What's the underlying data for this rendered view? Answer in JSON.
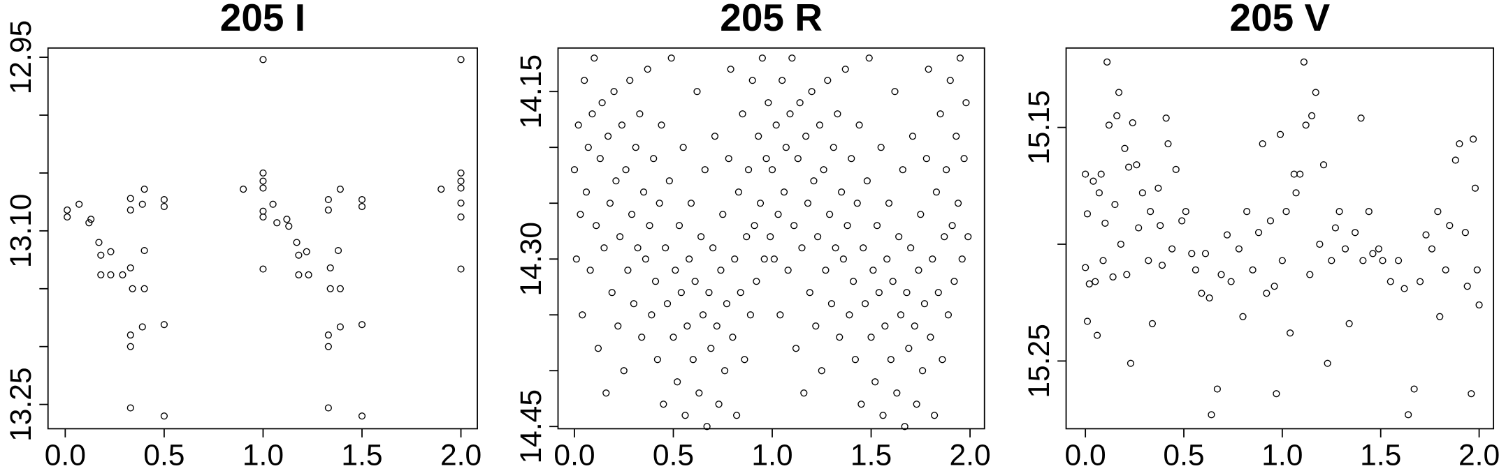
{
  "chart_data": [
    {
      "type": "scatter",
      "title": "205 I",
      "x": [
        0.01,
        0.01,
        0.07,
        0.13,
        0.12,
        0.17,
        0.18,
        0.23,
        0.18,
        0.23,
        0.29,
        0.33,
        0.33,
        0.33,
        0.34,
        0.33,
        0.33,
        0.33,
        0.39,
        0.4,
        0.4,
        0.39,
        0.4,
        0.5,
        0.5,
        0.5,
        0.5,
        0.9,
        1.0,
        1.0,
        1.0,
        1.0,
        1.0,
        1.0,
        1.0,
        1.05,
        1.07,
        1.12,
        1.13,
        1.17,
        1.18,
        1.22,
        1.18,
        1.23,
        1.33,
        1.33,
        1.34,
        1.34,
        1.33,
        1.33,
        1.33,
        1.39,
        1.39,
        1.39,
        1.38,
        1.5,
        1.5,
        1.5,
        1.5,
        1.9,
        2.0,
        2.0,
        2.0,
        2.0,
        2.0,
        2.0,
        2.0
      ],
      "y": [
        13.082,
        13.088,
        13.077,
        13.09,
        13.093,
        13.11,
        13.121,
        13.118,
        13.138,
        13.138,
        13.138,
        13.082,
        13.072,
        13.132,
        13.15,
        13.19,
        13.2,
        13.253,
        13.077,
        13.064,
        13.15,
        13.183,
        13.117,
        13.073,
        13.079,
        13.181,
        13.26,
        13.064,
        12.952,
        13.05,
        13.057,
        13.063,
        13.083,
        13.088,
        13.133,
        13.077,
        13.093,
        13.09,
        13.096,
        13.11,
        13.121,
        13.118,
        13.138,
        13.138,
        13.073,
        13.082,
        13.132,
        13.15,
        13.19,
        13.2,
        13.253,
        13.064,
        13.15,
        13.183,
        13.117,
        13.073,
        13.079,
        13.181,
        13.26,
        13.064,
        12.952,
        13.05,
        13.057,
        13.063,
        13.076,
        13.088,
        13.133
      ],
      "xlim": [
        -0.087,
        2.083
      ],
      "ylim": [
        13.271,
        12.942
      ],
      "xticks": [
        {
          "value": 0,
          "label": "0.0"
        },
        0.5,
        {
          "value": 1,
          "label": "1.0"
        },
        1.5,
        {
          "value": 2,
          "label": "2.0"
        }
      ],
      "yticks": [
        12.95,
        {
          "value": 13.1,
          "label": "13.10"
        },
        13.25
      ],
      "yminorticks": [
        13.0,
        13.05,
        13.15,
        13.2
      ],
      "color": "#000000"
    },
    {
      "type": "scatter",
      "title": "205 R",
      "x": [
        0.0,
        0.01,
        0.02,
        0.03,
        0.04,
        0.05,
        0.06,
        0.07,
        0.08,
        0.09,
        0.1,
        0.11,
        0.12,
        0.13,
        0.14,
        0.15,
        0.16,
        0.17,
        0.18,
        0.19,
        0.2,
        0.21,
        0.22,
        0.23,
        0.24,
        0.25,
        0.26,
        0.27,
        0.28,
        0.29,
        0.3,
        0.31,
        0.32,
        0.33,
        0.34,
        0.35,
        0.36,
        0.37,
        0.38,
        0.39,
        0.4,
        0.41,
        0.42,
        0.43,
        0.44,
        0.45,
        0.46,
        0.47,
        0.48,
        0.49,
        0.5,
        0.51,
        0.52,
        0.53,
        0.54,
        0.55,
        0.56,
        0.57,
        0.58,
        0.59,
        0.6,
        0.61,
        0.62,
        0.63,
        0.64,
        0.65,
        0.66,
        0.67,
        0.68,
        0.69,
        0.7,
        0.71,
        0.72,
        0.73,
        0.74,
        0.75,
        0.76,
        0.77,
        0.78,
        0.79,
        0.8,
        0.81,
        0.82,
        0.83,
        0.84,
        0.85,
        0.86,
        0.87,
        0.88,
        0.89,
        0.9,
        0.91,
        0.92,
        0.93,
        0.94,
        0.95,
        0.96,
        0.97,
        0.98,
        0.99,
        1.0,
        1.01,
        1.02,
        1.03,
        1.04,
        1.05,
        1.06,
        1.07,
        1.08,
        1.09,
        1.1,
        1.11,
        1.12,
        1.13,
        1.14,
        1.15,
        1.16,
        1.17,
        1.18,
        1.19,
        1.2,
        1.21,
        1.22,
        1.23,
        1.24,
        1.25,
        1.26,
        1.27,
        1.28,
        1.29,
        1.3,
        1.31,
        1.32,
        1.33,
        1.34,
        1.35,
        1.36,
        1.37,
        1.38,
        1.39,
        1.4,
        1.41,
        1.42,
        1.43,
        1.44,
        1.45,
        1.46,
        1.47,
        1.48,
        1.49,
        1.5,
        1.51,
        1.52,
        1.53,
        1.54,
        1.55,
        1.56,
        1.57,
        1.58,
        1.59,
        1.6,
        1.61,
        1.62,
        1.63,
        1.64,
        1.65,
        1.66,
        1.67,
        1.68,
        1.69,
        1.7,
        1.71,
        1.72,
        1.73,
        1.74,
        1.75,
        1.76,
        1.77,
        1.78,
        1.79,
        1.8,
        1.81,
        1.82,
        1.83,
        1.84,
        1.85,
        1.86,
        1.87,
        1.88,
        1.89,
        1.9,
        1.91,
        1.92,
        1.93,
        1.94,
        1.95,
        1.96,
        1.97,
        1.98,
        1.99
      ],
      "y": [
        14.22,
        14.3,
        14.18,
        14.26,
        14.35,
        14.14,
        14.24,
        14.2,
        14.31,
        14.17,
        14.12,
        14.27,
        14.38,
        14.21,
        14.16,
        14.29,
        14.42,
        14.19,
        14.25,
        14.33,
        14.15,
        14.23,
        14.36,
        14.28,
        14.18,
        14.4,
        14.22,
        14.31,
        14.14,
        14.26,
        14.34,
        14.2,
        14.29,
        14.17,
        14.37,
        14.24,
        14.3,
        14.13,
        14.27,
        14.35,
        14.21,
        14.32,
        14.39,
        14.25,
        14.18,
        14.43,
        14.29,
        14.34,
        14.23,
        14.12,
        14.37,
        14.31,
        14.41,
        14.27,
        14.33,
        14.2,
        14.44,
        14.36,
        14.3,
        14.25,
        14.39,
        14.32,
        14.15,
        14.42,
        14.28,
        14.35,
        14.22,
        14.45,
        14.33,
        14.38,
        14.29,
        14.19,
        14.36,
        14.43,
        14.31,
        14.26,
        14.4,
        14.34,
        14.21,
        14.13,
        14.37,
        14.3,
        14.44,
        14.24,
        14.33,
        14.17,
        14.39,
        14.28,
        14.22,
        14.35,
        14.14,
        14.27,
        14.32,
        14.19,
        14.25,
        14.12,
        14.3,
        14.21,
        14.16,
        14.28,
        14.22,
        14.3,
        14.18,
        14.26,
        14.35,
        14.14,
        14.24,
        14.2,
        14.31,
        14.17,
        14.12,
        14.27,
        14.38,
        14.21,
        14.16,
        14.29,
        14.42,
        14.19,
        14.25,
        14.33,
        14.15,
        14.23,
        14.36,
        14.28,
        14.18,
        14.4,
        14.22,
        14.31,
        14.14,
        14.26,
        14.34,
        14.2,
        14.29,
        14.17,
        14.37,
        14.24,
        14.3,
        14.13,
        14.27,
        14.35,
        14.21,
        14.32,
        14.39,
        14.25,
        14.18,
        14.43,
        14.29,
        14.34,
        14.23,
        14.12,
        14.37,
        14.31,
        14.41,
        14.27,
        14.33,
        14.2,
        14.44,
        14.36,
        14.3,
        14.25,
        14.39,
        14.32,
        14.15,
        14.42,
        14.28,
        14.35,
        14.22,
        14.45,
        14.33,
        14.38,
        14.29,
        14.19,
        14.36,
        14.43,
        14.31,
        14.26,
        14.4,
        14.34,
        14.21,
        14.13,
        14.37,
        14.3,
        14.44,
        14.24,
        14.33,
        14.17,
        14.39,
        14.28,
        14.22,
        14.35,
        14.14,
        14.27,
        14.32,
        14.19,
        14.25,
        14.12,
        14.3,
        14.21,
        14.16,
        14.28
      ],
      "xlim": [
        -0.083,
        2.073
      ],
      "ylim": [
        14.452,
        14.111
      ],
      "xticks": [
        {
          "value": 0,
          "label": "0.0"
        },
        0.5,
        {
          "value": 1,
          "label": "1.0"
        },
        1.5,
        {
          "value": 2,
          "label": "2.0"
        }
      ],
      "yticks": [
        14.15,
        {
          "value": 14.3,
          "label": "14.30"
        },
        14.45
      ],
      "yminorticks": [
        14.2,
        14.25,
        14.35,
        14.4
      ],
      "color": "#000000"
    },
    {
      "type": "scatter",
      "title": "205 V",
      "x": [
        0.0,
        0.01,
        0.0,
        0.02,
        0.01,
        0.04,
        0.05,
        0.06,
        0.07,
        0.08,
        0.09,
        0.1,
        0.11,
        0.12,
        0.14,
        0.15,
        0.16,
        0.17,
        0.18,
        0.2,
        0.21,
        0.22,
        0.23,
        0.24,
        0.26,
        0.27,
        0.29,
        0.32,
        0.33,
        0.34,
        0.37,
        0.38,
        0.39,
        0.41,
        0.42,
        0.44,
        0.46,
        0.49,
        0.51,
        0.54,
        0.56,
        0.59,
        0.61,
        0.63,
        0.64,
        0.67,
        0.69,
        0.72,
        0.74,
        0.78,
        0.8,
        0.82,
        0.85,
        0.88,
        0.9,
        0.92,
        0.94,
        0.96,
        0.97,
        0.99,
        1.0,
        1.02,
        1.04,
        1.06,
        1.07,
        1.09,
        1.11,
        1.12,
        1.14,
        1.15,
        1.17,
        1.19,
        1.21,
        1.23,
        1.25,
        1.27,
        1.29,
        1.32,
        1.34,
        1.37,
        1.4,
        1.41,
        1.44,
        1.46,
        1.49,
        1.51,
        1.55,
        1.59,
        1.62,
        1.64,
        1.67,
        1.7,
        1.73,
        1.76,
        1.79,
        1.8,
        1.83,
        1.85,
        1.88,
        1.9,
        1.93,
        1.94,
        1.96,
        1.97,
        1.98,
        1.99,
        2.0
      ],
      "y": [
        15.17,
        15.187,
        15.21,
        15.217,
        15.233,
        15.173,
        15.216,
        15.239,
        15.178,
        15.17,
        15.207,
        15.191,
        15.122,
        15.149,
        15.214,
        15.183,
        15.145,
        15.135,
        15.2,
        15.159,
        15.213,
        15.167,
        15.251,
        15.148,
        15.166,
        15.193,
        15.178,
        15.207,
        15.186,
        15.234,
        15.176,
        15.192,
        15.209,
        15.146,
        15.157,
        15.202,
        15.168,
        15.19,
        15.186,
        15.204,
        15.211,
        15.221,
        15.204,
        15.223,
        15.273,
        15.262,
        15.213,
        15.196,
        15.216,
        15.202,
        15.231,
        15.186,
        15.211,
        15.195,
        15.157,
        15.221,
        15.19,
        15.218,
        15.264,
        15.153,
        15.207,
        15.186,
        15.238,
        15.17,
        15.178,
        15.17,
        15.122,
        15.149,
        15.213,
        15.145,
        15.135,
        15.2,
        15.166,
        15.251,
        15.207,
        15.193,
        15.186,
        15.202,
        15.234,
        15.195,
        15.146,
        15.207,
        15.186,
        15.204,
        15.202,
        15.207,
        15.216,
        15.207,
        15.219,
        15.273,
        15.262,
        15.216,
        15.196,
        15.202,
        15.186,
        15.231,
        15.211,
        15.192,
        15.164,
        15.157,
        15.195,
        15.218,
        15.264,
        15.155,
        15.176,
        15.211,
        15.226
      ],
      "xlim": [
        -0.098,
        2.073
      ],
      "ylim": [
        15.279,
        15.116
      ],
      "xticks": [
        {
          "value": 0,
          "label": "0.0"
        },
        0.5,
        {
          "value": 1,
          "label": "1.0"
        },
        1.5,
        {
          "value": 2,
          "label": "2.0"
        }
      ],
      "yticks": [
        15.15,
        15.25
      ],
      "yminorticks": [
        15.2
      ],
      "color": "#000000"
    }
  ]
}
